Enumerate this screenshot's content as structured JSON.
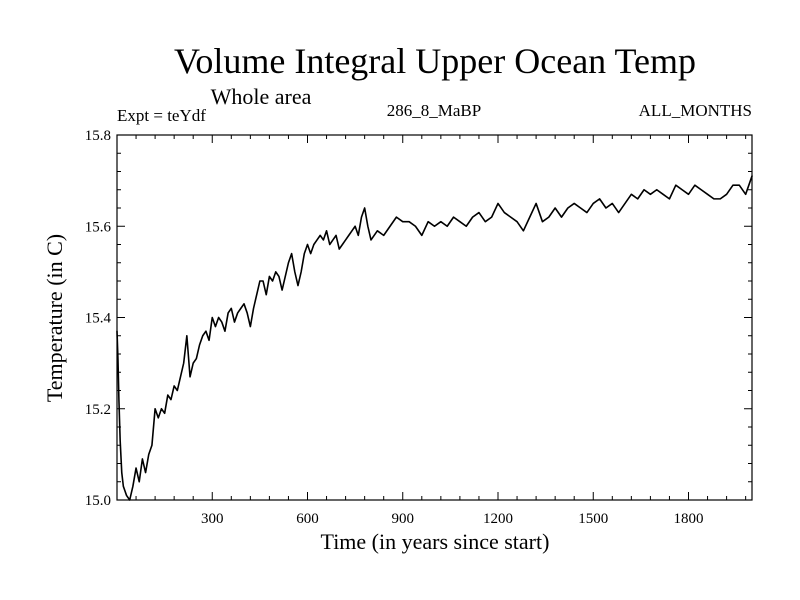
{
  "chart_data": {
    "type": "line",
    "title": "Volume Integral Upper Ocean Temp",
    "subtitle": "Whole area",
    "experiment_label": "Expt = teYdf",
    "run_label": "286_8_MaBP",
    "months_label": "ALL_MONTHS",
    "xlabel": "Time (in years since start)",
    "ylabel": "Temperature (in C)",
    "xlim": [
      0,
      2000
    ],
    "ylim": [
      15.0,
      15.8
    ],
    "x_ticks": [
      300,
      600,
      900,
      1200,
      1500,
      1800
    ],
    "x_tick_labels": [
      "300",
      "600",
      "900",
      "1200",
      "1500",
      "1800"
    ],
    "y_ticks": [
      15.0,
      15.2,
      15.4,
      15.6,
      15.8
    ],
    "y_tick_labels": [
      "15.0",
      "15.2",
      "15.4",
      "15.6",
      "15.8"
    ],
    "grid": false,
    "series": [
      {
        "name": "Volume integral upper ocean temperature",
        "color": "#000000",
        "x": [
          0,
          3,
          6,
          10,
          15,
          20,
          25,
          30,
          40,
          50,
          60,
          70,
          80,
          90,
          100,
          110,
          120,
          130,
          140,
          150,
          160,
          170,
          180,
          190,
          200,
          210,
          220,
          230,
          240,
          250,
          260,
          270,
          280,
          290,
          300,
          310,
          320,
          330,
          340,
          350,
          360,
          370,
          380,
          390,
          400,
          410,
          420,
          430,
          440,
          450,
          460,
          470,
          480,
          490,
          500,
          510,
          520,
          530,
          540,
          550,
          560,
          570,
          580,
          590,
          600,
          610,
          620,
          630,
          640,
          650,
          660,
          670,
          680,
          690,
          700,
          710,
          720,
          730,
          740,
          750,
          760,
          770,
          780,
          790,
          800,
          820,
          840,
          860,
          880,
          900,
          920,
          940,
          960,
          980,
          1000,
          1020,
          1040,
          1060,
          1080,
          1100,
          1120,
          1140,
          1160,
          1180,
          1200,
          1220,
          1240,
          1260,
          1280,
          1300,
          1320,
          1340,
          1360,
          1380,
          1400,
          1420,
          1440,
          1460,
          1480,
          1500,
          1520,
          1540,
          1560,
          1580,
          1600,
          1620,
          1640,
          1660,
          1680,
          1700,
          1720,
          1740,
          1760,
          1780,
          1800,
          1820,
          1840,
          1860,
          1880,
          1900,
          1920,
          1940,
          1960,
          1980,
          2000
        ],
        "values": [
          15.37,
          15.31,
          15.22,
          15.13,
          15.06,
          15.03,
          15.02,
          15.01,
          15.0,
          15.03,
          15.07,
          15.04,
          15.09,
          15.06,
          15.1,
          15.12,
          15.2,
          15.18,
          15.2,
          15.19,
          15.23,
          15.22,
          15.25,
          15.24,
          15.27,
          15.3,
          15.36,
          15.27,
          15.3,
          15.31,
          15.34,
          15.36,
          15.37,
          15.35,
          15.4,
          15.38,
          15.4,
          15.39,
          15.37,
          15.41,
          15.42,
          15.39,
          15.41,
          15.42,
          15.43,
          15.41,
          15.38,
          15.42,
          15.45,
          15.48,
          15.48,
          15.45,
          15.49,
          15.48,
          15.5,
          15.49,
          15.46,
          15.49,
          15.52,
          15.54,
          15.5,
          15.47,
          15.5,
          15.54,
          15.56,
          15.54,
          15.56,
          15.57,
          15.58,
          15.57,
          15.59,
          15.56,
          15.57,
          15.58,
          15.55,
          15.56,
          15.57,
          15.58,
          15.59,
          15.6,
          15.58,
          15.62,
          15.64,
          15.6,
          15.57,
          15.59,
          15.58,
          15.6,
          15.62,
          15.61,
          15.61,
          15.6,
          15.58,
          15.61,
          15.6,
          15.61,
          15.6,
          15.62,
          15.61,
          15.6,
          15.62,
          15.63,
          15.61,
          15.62,
          15.65,
          15.63,
          15.62,
          15.61,
          15.59,
          15.62,
          15.65,
          15.61,
          15.62,
          15.64,
          15.62,
          15.64,
          15.65,
          15.64,
          15.63,
          15.65,
          15.66,
          15.64,
          15.65,
          15.63,
          15.65,
          15.67,
          15.66,
          15.68,
          15.67,
          15.68,
          15.67,
          15.66,
          15.69,
          15.68,
          15.67,
          15.69,
          15.68,
          15.67,
          15.66,
          15.66,
          15.67,
          15.69,
          15.69,
          15.67,
          15.71
        ]
      }
    ]
  }
}
